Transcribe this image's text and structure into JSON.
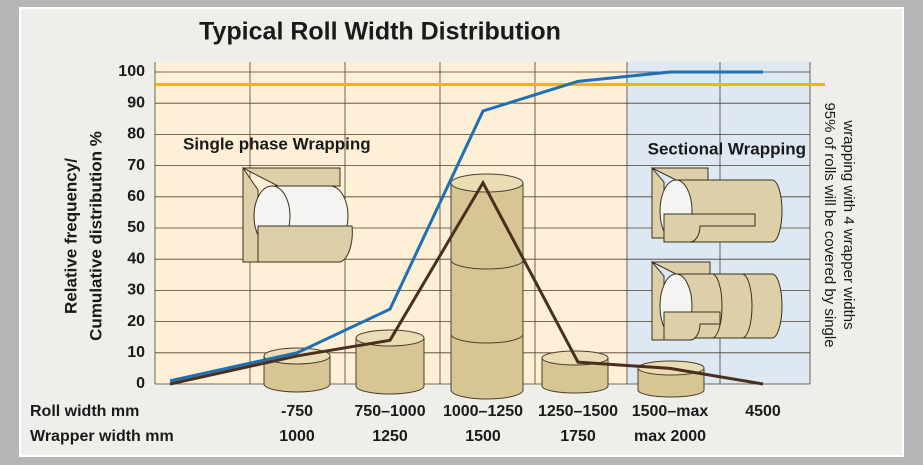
{
  "chart_data": {
    "type": "line",
    "title": "Typical Roll Width Distribution",
    "y_label": [
      "Relative frequency/",
      "Cumulative distribution %"
    ],
    "side_note": [
      "95% of rolls will be covered by single",
      "wrapping with 4 wrapper widths"
    ],
    "region_labels": [
      "Single phase Wrapping",
      "Sectional Wrapping"
    ],
    "row_labels": [
      "Roll width mm",
      "Wrapper width mm"
    ],
    "categories": [
      null,
      "-750",
      "750–1000",
      "1000–1250",
      "1250–1500",
      "1500–max",
      "4500"
    ],
    "wrapper_widths": [
      null,
      "1000",
      "1250",
      "1500",
      "1750",
      "max 2000",
      null
    ],
    "series": [
      {
        "color": "#1f6fb4",
        "values": [
          1,
          10,
          24,
          87.5,
          97,
          100,
          100
        ]
      },
      {
        "color": "#4a2e1e",
        "values": [
          0,
          9,
          14,
          64.5,
          7,
          5,
          0
        ]
      }
    ],
    "reference_line": {
      "value": 96,
      "color": "#f5b400"
    },
    "ylim": [
      0,
      100
    ],
    "yticks": [
      0,
      10,
      20,
      30,
      40,
      50,
      60,
      70,
      80,
      90,
      100
    ],
    "grid": true
  }
}
